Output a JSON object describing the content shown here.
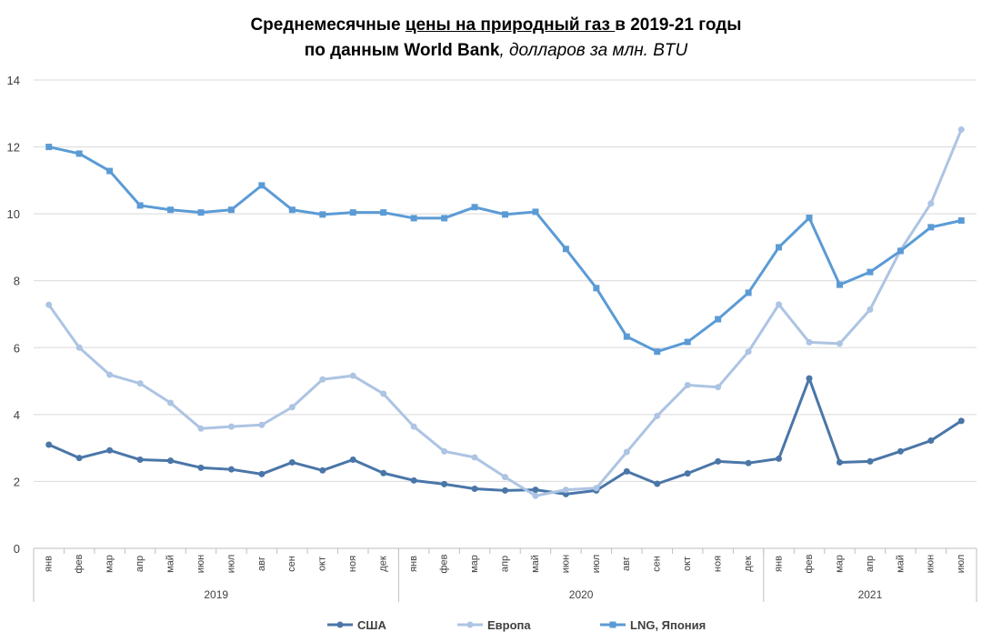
{
  "chart_data": {
    "type": "line",
    "title": {
      "line1_a": "Среднемесячные ",
      "line1_b": "цены на природный газ ",
      "line1_c": "в 2019-21 годы",
      "line2_a": "по данным World Bank",
      "line2_b": ", долларов за млн. BTU"
    },
    "ylim": [
      0,
      14
    ],
    "yticks": [
      0,
      2,
      4,
      6,
      8,
      10,
      12,
      14
    ],
    "grid": true,
    "legend_position": "bottom",
    "categories": [
      "янв",
      "фев",
      "мар",
      "апр",
      "май",
      "июн",
      "июл",
      "авг",
      "сен",
      "окт",
      "ноя",
      "дек",
      "янв",
      "фев",
      "мар",
      "апр",
      "май",
      "июн",
      "июл",
      "авг",
      "сен",
      "окт",
      "ноя",
      "дек",
      "янв",
      "фев",
      "мар",
      "апр",
      "май",
      "июн",
      "июл"
    ],
    "years": [
      {
        "label": "2019",
        "count": 12
      },
      {
        "label": "2020",
        "count": 12
      },
      {
        "label": "2021",
        "count": 7
      }
    ],
    "series": [
      {
        "name": "США",
        "color": "#4a76a8",
        "marker": "circle",
        "values": [
          3.1,
          2.7,
          2.93,
          2.65,
          2.62,
          2.41,
          2.36,
          2.22,
          2.57,
          2.33,
          2.65,
          2.25,
          2.03,
          1.92,
          1.78,
          1.73,
          1.75,
          1.62,
          1.73,
          2.3,
          1.93,
          2.24,
          2.6,
          2.55,
          2.68,
          5.08,
          2.57,
          2.6,
          2.9,
          3.22,
          3.81
        ]
      },
      {
        "name": "Европа",
        "color": "#adc4e3",
        "marker": "circle",
        "values": [
          7.28,
          6.0,
          5.19,
          4.93,
          4.35,
          3.58,
          3.64,
          3.69,
          4.22,
          5.05,
          5.16,
          4.62,
          3.64,
          2.9,
          2.72,
          2.13,
          1.57,
          1.75,
          1.8,
          2.88,
          3.96,
          4.88,
          4.82,
          5.88,
          7.29,
          6.16,
          6.12,
          7.14,
          8.91,
          10.31,
          12.52
        ]
      },
      {
        "name": "LNG, Япония",
        "color": "#5b9bd5",
        "marker": "square",
        "values": [
          12.0,
          11.8,
          11.28,
          10.25,
          10.12,
          10.04,
          10.12,
          10.85,
          10.12,
          9.98,
          10.04,
          10.04,
          9.87,
          9.87,
          10.2,
          9.98,
          10.06,
          8.95,
          7.78,
          6.33,
          5.88,
          6.17,
          6.85,
          7.64,
          9.0,
          9.88,
          7.88,
          8.26,
          8.89,
          9.6,
          9.8
        ]
      }
    ]
  }
}
